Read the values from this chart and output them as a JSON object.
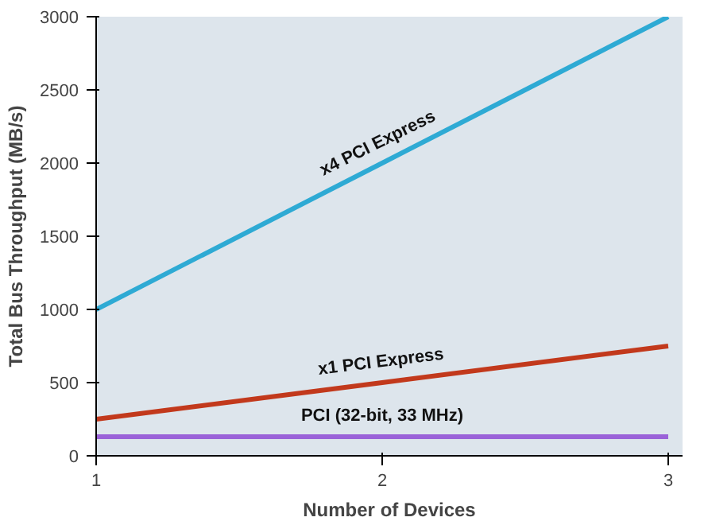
{
  "chart_data": {
    "type": "line",
    "xlabel": "Number of Devices",
    "ylabel": "Total Bus Throughput (MB/s)",
    "x": [
      1,
      2,
      3
    ],
    "series": [
      {
        "name": "x4 PCI Express",
        "color": "#2eaad4",
        "values": [
          1000,
          2000,
          3000
        ]
      },
      {
        "name": "x1 PCI Express",
        "color": "#c2391c",
        "values": [
          250,
          500,
          750
        ]
      },
      {
        "name": "PCI (32-bit, 33 MHz)",
        "color": "#9a62d8",
        "values": [
          130,
          130,
          130
        ]
      }
    ],
    "xlim": [
      1,
      3.05
    ],
    "ylim": [
      0,
      3000
    ],
    "xticks": [
      1,
      2,
      3
    ],
    "yticks": [
      0,
      500,
      1000,
      1500,
      2000,
      2500,
      3000
    ],
    "grid": false,
    "marker": "none",
    "line_style": "solid"
  }
}
